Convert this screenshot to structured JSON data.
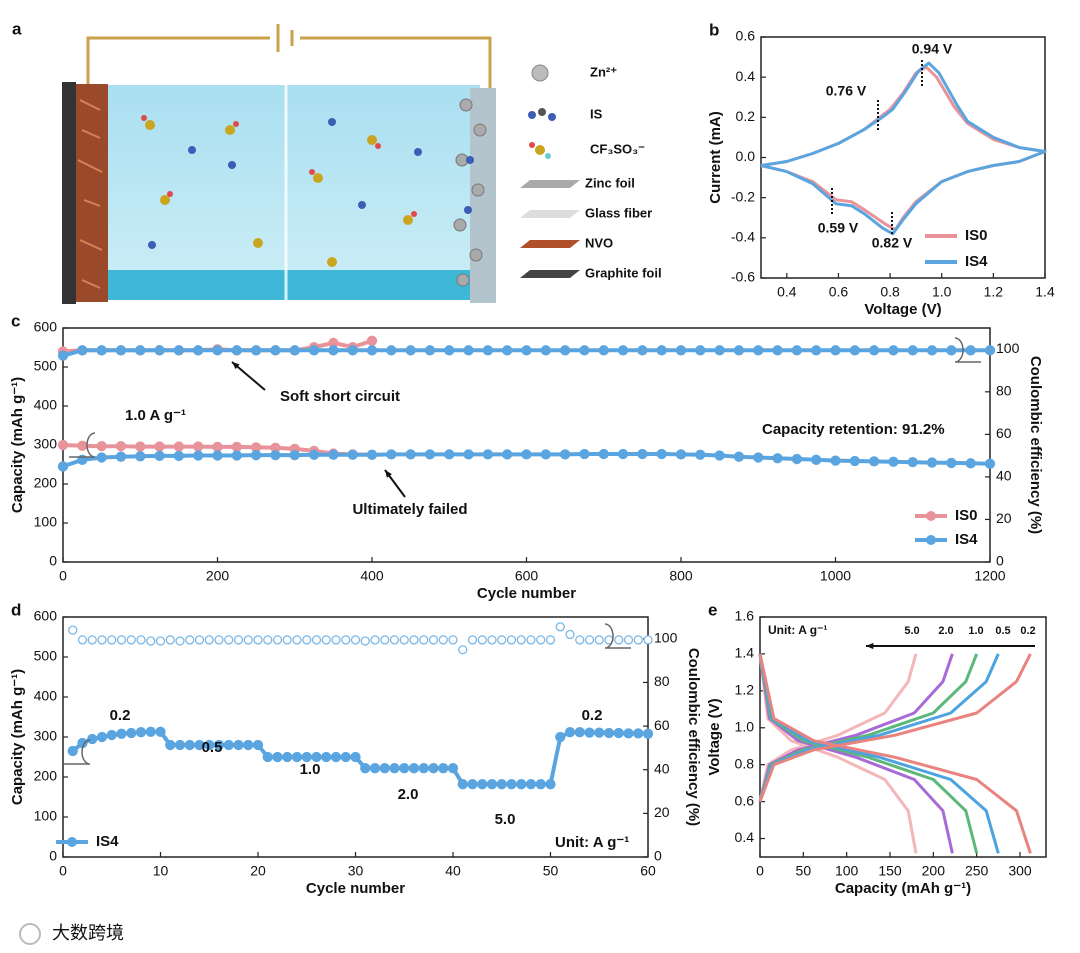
{
  "schematic": {
    "label": "a",
    "legend": [
      "Zn²⁺",
      "IS",
      "CF₃SO₃⁻",
      "Zinc foil",
      "Glass fiber",
      "NVO",
      "Graphite foil"
    ]
  },
  "watermark": "大数跨境",
  "chart_data": [
    {
      "type": "line",
      "label": "b",
      "xlabel": "Voltage (V)",
      "ylabel": "Current (mA)",
      "xlim": [
        0.3,
        1.4
      ],
      "ylim": [
        -0.6,
        0.6
      ],
      "xticks": [
        0.4,
        0.6,
        0.8,
        {
          "value": 1,
          "label": "1.0"
        },
        1.2,
        1.4
      ],
      "yticks": [
        -0.6,
        -0.4,
        -0.2,
        {
          "value": 0,
          "label": "0.0"
        },
        0.2,
        0.4,
        0.6
      ],
      "annotations": [
        "0.94 V",
        "0.76 V",
        "0.59 V",
        "0.82 V"
      ],
      "series": [
        {
          "name": "IS0",
          "color": "#e8939a",
          "x": [
            0.3,
            0.4,
            0.5,
            0.6,
            0.7,
            0.76,
            0.8,
            0.85,
            0.9,
            0.94,
            0.98,
            1.05,
            1.1,
            1.2,
            1.3,
            1.4,
            1.3,
            1.2,
            1.1,
            1.0,
            0.9,
            0.85,
            0.82,
            0.78,
            0.7,
            0.65,
            0.59,
            0.5,
            0.4,
            0.3
          ],
          "values": [
            -0.04,
            -0.02,
            0.02,
            0.07,
            0.14,
            0.2,
            0.24,
            0.32,
            0.42,
            0.45,
            0.4,
            0.25,
            0.17,
            0.09,
            0.05,
            0.03,
            -0.02,
            -0.04,
            -0.07,
            -0.12,
            -0.22,
            -0.3,
            -0.36,
            -0.33,
            -0.26,
            -0.22,
            -0.21,
            -0.12,
            -0.07,
            -0.04
          ]
        },
        {
          "name": "IS4",
          "color": "#5aa5e0",
          "x": [
            0.3,
            0.4,
            0.5,
            0.6,
            0.7,
            0.77,
            0.81,
            0.86,
            0.91,
            0.95,
            0.99,
            1.06,
            1.1,
            1.2,
            1.3,
            1.4,
            1.3,
            1.2,
            1.1,
            1.0,
            0.9,
            0.85,
            0.81,
            0.77,
            0.7,
            0.65,
            0.59,
            0.5,
            0.4,
            0.3
          ],
          "values": [
            -0.04,
            -0.02,
            0.02,
            0.07,
            0.14,
            0.2,
            0.24,
            0.33,
            0.43,
            0.47,
            0.42,
            0.26,
            0.18,
            0.1,
            0.05,
            0.03,
            -0.02,
            -0.04,
            -0.07,
            -0.12,
            -0.23,
            -0.31,
            -0.38,
            -0.35,
            -0.28,
            -0.24,
            -0.23,
            -0.13,
            -0.07,
            -0.04
          ]
        }
      ]
    },
    {
      "type": "scatter",
      "label": "c",
      "xlabel": "Cycle number",
      "ylabel": "Capacity (mAh g⁻¹)",
      "y2label": "Coulombic efficiency (%)",
      "xlim": [
        0,
        1200
      ],
      "ylim": [
        0,
        600
      ],
      "y2lim": [
        0,
        110
      ],
      "xticks": [
        0,
        200,
        400,
        600,
        800,
        1000,
        1200
      ],
      "yticks": [
        0,
        100,
        200,
        300,
        400,
        500,
        600
      ],
      "y2ticks": [
        0,
        20,
        40,
        60,
        80,
        100
      ],
      "annotations": [
        "Soft short circuit",
        "1.0 A g⁻¹",
        "Capacity retention: 91.2%",
        "Ultimately failed"
      ],
      "series": [
        {
          "name": "IS0",
          "color": "#e8939a",
          "x": [
            0,
            25,
            50,
            75,
            100,
            125,
            150,
            175,
            200,
            225,
            250,
            275,
            300,
            325,
            350,
            375,
            400
          ],
          "values": [
            300,
            298,
            297,
            297,
            296,
            296,
            296,
            296,
            295,
            295,
            294,
            293,
            290,
            285,
            278,
            276,
            275
          ]
        },
        {
          "name": "IS4",
          "color": "#5aa5e0",
          "x": [
            0,
            25,
            50,
            75,
            100,
            125,
            150,
            175,
            200,
            225,
            250,
            275,
            300,
            325,
            350,
            375,
            400,
            425,
            450,
            475,
            500,
            525,
            550,
            575,
            600,
            625,
            650,
            675,
            700,
            725,
            750,
            775,
            800,
            825,
            850,
            875,
            900,
            925,
            950,
            975,
            1000,
            1025,
            1050,
            1075,
            1100,
            1125,
            1150,
            1175,
            1200
          ],
          "values": [
            245,
            262,
            268,
            270,
            271,
            272,
            272,
            273,
            273,
            273,
            274,
            274,
            274,
            275,
            275,
            275,
            275,
            276,
            276,
            276,
            276,
            276,
            276,
            276,
            276,
            276,
            276,
            277,
            277,
            277,
            277,
            277,
            276,
            275,
            273,
            270,
            268,
            266,
            264,
            262,
            260,
            259,
            258,
            257,
            256,
            255,
            254,
            253,
            252
          ]
        },
        {
          "axis": "y2",
          "color": "#e8939a",
          "x": [
            0,
            25,
            50,
            75,
            100,
            125,
            150,
            175,
            200,
            225,
            250,
            275,
            300,
            325,
            350,
            375,
            400
          ],
          "values": [
            99,
            99.5,
            99.5,
            99.5,
            99.5,
            99.5,
            99.5,
            99.5,
            100,
            99.5,
            99.5,
            99.5,
            99.5,
            101,
            103,
            101,
            104
          ]
        },
        {
          "axis": "y2",
          "color": "#5aa5e0",
          "x": [
            0,
            25,
            50,
            75,
            100,
            125,
            150,
            175,
            200,
            225,
            250,
            275,
            300,
            325,
            350,
            375,
            400,
            425,
            450,
            475,
            500,
            525,
            550,
            575,
            600,
            625,
            650,
            675,
            700,
            725,
            750,
            775,
            800,
            825,
            850,
            875,
            900,
            925,
            950,
            975,
            1000,
            1025,
            1050,
            1075,
            1100,
            1125,
            1150,
            1175,
            1200
          ],
          "values": [
            97,
            99.5,
            99.5,
            99.5,
            99.5,
            99.5,
            99.5,
            99.5,
            99.5,
            99.5,
            99.5,
            99.5,
            99.5,
            99.5,
            99.5,
            99.5,
            99.5,
            99.5,
            99.5,
            99.5,
            99.5,
            99.5,
            99.5,
            99.5,
            99.5,
            99.5,
            99.5,
            99.5,
            99.5,
            99.5,
            99.5,
            99.5,
            99.5,
            99.5,
            99.5,
            99.5,
            99.5,
            99.5,
            99.5,
            99.5,
            99.5,
            99.5,
            99.5,
            99.5,
            99.5,
            99.5,
            99.5,
            99.5,
            99.5
          ]
        }
      ]
    },
    {
      "type": "scatter",
      "label": "d",
      "xlabel": "Cycle number",
      "ylabel": "Capacity (mAh g⁻¹)",
      "y2label": "Coulombic efficiency (%)",
      "xlim": [
        0,
        60
      ],
      "ylim": [
        0,
        600
      ],
      "y2lim": [
        0,
        110
      ],
      "xticks": [
        0,
        10,
        20,
        30,
        40,
        50,
        60
      ],
      "yticks": [
        0,
        100,
        200,
        300,
        400,
        500,
        600
      ],
      "y2ticks": [
        0,
        20,
        40,
        60,
        80,
        100
      ],
      "annotations": [
        "0.2",
        "0.5",
        "1.0",
        "2.0",
        "5.0",
        "0.2",
        "Unit: A g⁻¹"
      ],
      "series": [
        {
          "name": "IS4",
          "color": "#5aa5e0",
          "x": [
            1,
            2,
            3,
            4,
            5,
            6,
            7,
            8,
            9,
            10,
            11,
            12,
            13,
            14,
            15,
            16,
            17,
            18,
            19,
            20,
            21,
            22,
            23,
            24,
            25,
            26,
            27,
            28,
            29,
            30,
            31,
            32,
            33,
            34,
            35,
            36,
            37,
            38,
            39,
            40,
            41,
            42,
            43,
            44,
            45,
            46,
            47,
            48,
            49,
            50,
            51,
            52,
            53,
            54,
            55,
            56,
            57,
            58,
            59,
            60
          ],
          "values": [
            265,
            285,
            295,
            300,
            305,
            308,
            310,
            312,
            313,
            313,
            280,
            280,
            280,
            280,
            280,
            280,
            280,
            280,
            280,
            280,
            250,
            250,
            250,
            250,
            250,
            250,
            250,
            250,
            250,
            250,
            222,
            222,
            222,
            222,
            222,
            222,
            222,
            222,
            222,
            222,
            182,
            182,
            182,
            182,
            182,
            182,
            182,
            182,
            182,
            182,
            300,
            312,
            312,
            311,
            311,
            310,
            310,
            309,
            309,
            308
          ]
        },
        {
          "axis": "y2",
          "color": "#7ab8e8",
          "hollow": true,
          "x": [
            1,
            2,
            3,
            4,
            5,
            6,
            7,
            8,
            9,
            10,
            11,
            12,
            13,
            14,
            15,
            16,
            17,
            18,
            19,
            20,
            21,
            22,
            23,
            24,
            25,
            26,
            27,
            28,
            29,
            30,
            31,
            32,
            33,
            34,
            35,
            36,
            37,
            38,
            39,
            40,
            41,
            42,
            43,
            44,
            45,
            46,
            47,
            48,
            49,
            50,
            51,
            52,
            53,
            54,
            55,
            56,
            57,
            58,
            59,
            60
          ],
          "values": [
            104,
            99.5,
            99.5,
            99.5,
            99.5,
            99.5,
            99.5,
            99.5,
            99,
            99,
            99.5,
            99,
            99.5,
            99.5,
            99.5,
            99.5,
            99.5,
            99.5,
            99.5,
            99.5,
            99.5,
            99.5,
            99.5,
            99.5,
            99.5,
            99.5,
            99.5,
            99.5,
            99.5,
            99.5,
            99,
            99.5,
            99.5,
            99.5,
            99.5,
            99.5,
            99.5,
            99.5,
            99.5,
            99.5,
            95,
            99.5,
            99.5,
            99.5,
            99.5,
            99.5,
            99.5,
            99.5,
            99.5,
            99.5,
            105.5,
            102,
            99.5,
            99.5,
            99.5,
            99.5,
            99.5,
            99.5,
            99.5,
            99.5
          ]
        }
      ]
    },
    {
      "type": "line",
      "label": "e",
      "xlabel": "Capacity (mAh g⁻¹)",
      "ylabel": "Voltage (V)",
      "xlim": [
        0,
        330
      ],
      "ylim": [
        0.3,
        1.6
      ],
      "xticks": [
        0,
        50,
        100,
        150,
        200,
        250,
        300
      ],
      "yticks": [
        0.4,
        0.6,
        0.8,
        {
          "value": 1,
          "label": "1.0"
        },
        1.2,
        1.4,
        1.6
      ],
      "annotations": [
        "Unit: A g⁻¹"
      ],
      "series": [
        {
          "name": "5.0",
          "color": "#f4b6b8",
          "x": [
            0,
            9,
            36,
            90,
            144,
            171,
            180
          ],
          "values": [
            1.4,
            1.05,
            0.93,
            0.84,
            0.72,
            0.55,
            0.32
          ],
          "charge": {
            "x": [
              0,
              9,
              36,
              90,
              144,
              171,
              180
            ],
            "values": [
              0.6,
              0.8,
              0.88,
              0.96,
              1.08,
              1.25,
              1.4
            ]
          }
        },
        {
          "name": "2.0",
          "color": "#a86ad6",
          "x": [
            0,
            11,
            44,
            111,
            178,
            211,
            222
          ],
          "values": [
            1.4,
            1.05,
            0.93,
            0.84,
            0.72,
            0.55,
            0.32
          ],
          "charge": {
            "x": [
              0,
              11,
              44,
              111,
              178,
              211,
              222
            ],
            "values": [
              0.6,
              0.8,
              0.88,
              0.96,
              1.08,
              1.25,
              1.4
            ]
          }
        },
        {
          "name": "1.0",
          "color": "#5cb87a",
          "x": [
            0,
            12.5,
            50,
            125,
            200,
            237.5,
            250
          ],
          "values": [
            1.4,
            1.05,
            0.93,
            0.84,
            0.72,
            0.55,
            0.32
          ],
          "charge": {
            "x": [
              0,
              12.5,
              50,
              125,
              200,
              237.5,
              250
            ],
            "values": [
              0.6,
              0.8,
              0.88,
              0.96,
              1.08,
              1.25,
              1.4
            ]
          }
        },
        {
          "name": "0.5",
          "color": "#4da3e0",
          "x": [
            0,
            14,
            55,
            138,
            220,
            261,
            275
          ],
          "values": [
            1.4,
            1.05,
            0.93,
            0.84,
            0.72,
            0.55,
            0.32
          ],
          "charge": {
            "x": [
              0,
              14,
              55,
              138,
              220,
              261,
              275
            ],
            "values": [
              0.6,
              0.8,
              0.88,
              0.96,
              1.08,
              1.25,
              1.4
            ]
          }
        },
        {
          "name": "0.2",
          "color": "#e8837e",
          "x": [
            0,
            16,
            62,
            156,
            250,
            296,
            312
          ],
          "values": [
            1.4,
            1.05,
            0.93,
            0.84,
            0.72,
            0.55,
            0.32
          ],
          "charge": {
            "x": [
              0,
              16,
              62,
              156,
              250,
              296,
              312
            ],
            "values": [
              0.6,
              0.8,
              0.88,
              0.96,
              1.08,
              1.25,
              1.4
            ]
          }
        }
      ]
    }
  ]
}
